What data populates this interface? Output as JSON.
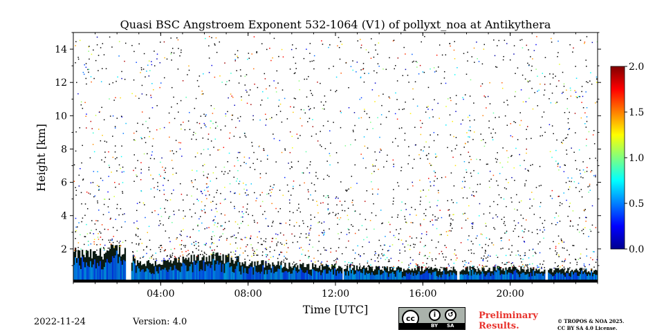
{
  "chart_data": {
    "type": "heatmap",
    "title": "Quasi BSC Angstroem Exponent 532-1064 (V1) of pollyxt_noa at Antikythera",
    "xlabel": "Time [UTC]",
    "ylabel": "Height [km]",
    "xlim": [
      0,
      24
    ],
    "ylim": [
      0,
      15
    ],
    "x_ticks": [
      {
        "value": 4,
        "label": "04:00"
      },
      {
        "value": 8,
        "label": "08:00"
      },
      {
        "value": 12,
        "label": "12:00"
      },
      {
        "value": 16,
        "label": "16:00"
      },
      {
        "value": 20,
        "label": "20:00"
      }
    ],
    "y_ticks": [
      {
        "value": 2,
        "label": "2"
      },
      {
        "value": 4,
        "label": "4"
      },
      {
        "value": 6,
        "label": "6"
      },
      {
        "value": 8,
        "label": "8"
      },
      {
        "value": 10,
        "label": "10"
      },
      {
        "value": 12,
        "label": "12"
      },
      {
        "value": 14,
        "label": "14"
      }
    ],
    "colorbar": {
      "min": 0.0,
      "max": 2.0,
      "colormap": "jet",
      "ticks": [
        {
          "value": 0.0,
          "label": "0.0"
        },
        {
          "value": 0.5,
          "label": "0.5"
        },
        {
          "value": 1.0,
          "label": "1.0"
        },
        {
          "value": 1.5,
          "label": "1.5"
        },
        {
          "value": 2.0,
          "label": "2.0"
        }
      ]
    },
    "data_gaps_hours": [
      [
        2.4,
        2.65
      ],
      [
        12.3,
        12.4
      ],
      [
        17.55,
        17.7
      ],
      [
        21.6,
        21.75
      ]
    ],
    "aerosol_layer_top_km": [
      {
        "t": 0,
        "h": 1.9
      },
      {
        "t": 1,
        "h": 1.8
      },
      {
        "t": 2,
        "h": 2.2
      },
      {
        "t": 2.4,
        "h": 2.0
      },
      {
        "t": 3,
        "h": 1.3
      },
      {
        "t": 4,
        "h": 1.3
      },
      {
        "t": 5,
        "h": 1.4
      },
      {
        "t": 6,
        "h": 1.7
      },
      {
        "t": 7,
        "h": 1.6
      },
      {
        "t": 8,
        "h": 1.3
      },
      {
        "t": 10,
        "h": 1.1
      },
      {
        "t": 12,
        "h": 1.0
      },
      {
        "t": 14,
        "h": 0.9
      },
      {
        "t": 16,
        "h": 0.9
      },
      {
        "t": 18,
        "h": 0.9
      },
      {
        "t": 20,
        "h": 0.9
      },
      {
        "t": 22,
        "h": 0.8
      },
      {
        "t": 24,
        "h": 0.8
      }
    ],
    "ground_layer_top_km": 0.15
  },
  "footer": {
    "date": "2022-11-24",
    "version": "Version: 4.0",
    "license_badge": {
      "cc": "cc",
      "by": "BY",
      "sa": "SA"
    },
    "preliminary_line1": "Preliminary",
    "preliminary_line2": "Results.",
    "copyright_line1": "© TROPOS & NOA 2025.",
    "copyright_line2": "CC BY SA 4.0 License."
  },
  "colors": {
    "warning": "#e8322c",
    "badge_bg": "#aab2ab"
  }
}
